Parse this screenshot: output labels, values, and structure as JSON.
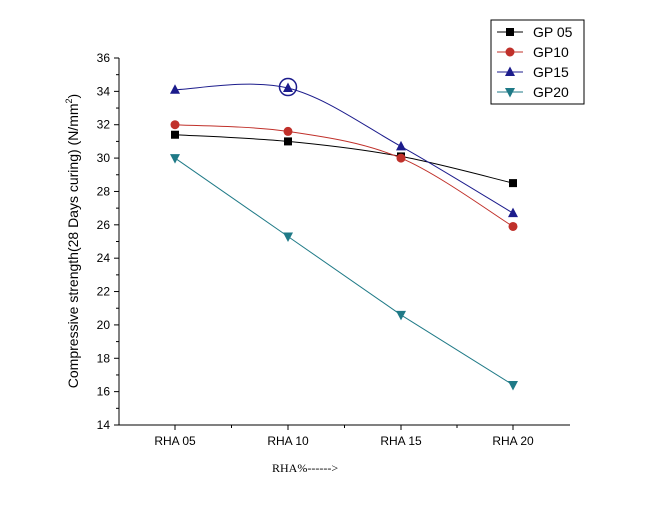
{
  "chart_data": {
    "type": "line",
    "title": "",
    "xlabel": "RHA%",
    "xlabel_arrow": "------>",
    "ylabel_main": "Compressive strength(28 Days curing) (N/mm",
    "ylabel_sup": "2",
    "ylabel_close": ")",
    "categories": [
      "RHA 05",
      "RHA 10",
      "RHA 15",
      "RHA 20"
    ],
    "ylim": [
      14,
      36
    ],
    "yticks": [
      14,
      16,
      18,
      20,
      22,
      24,
      26,
      28,
      30,
      32,
      34,
      36
    ],
    "grid": false,
    "legend_position": "top-right",
    "series": [
      {
        "name": "GP 05",
        "values": [
          31.4,
          31.0,
          30.1,
          28.5
        ],
        "color": "#000000",
        "marker": "square"
      },
      {
        "name": "GP10",
        "values": [
          32.0,
          31.6,
          30.0,
          25.9
        ],
        "color": "#c0302a",
        "marker": "circle"
      },
      {
        "name": "GP15",
        "values": [
          34.1,
          34.2,
          30.7,
          26.7
        ],
        "color": "#1c1c8c",
        "marker": "triangle-up"
      },
      {
        "name": "GP20",
        "values": [
          30.0,
          25.3,
          20.6,
          16.4
        ],
        "color": "#1f7a87",
        "marker": "triangle-down"
      }
    ],
    "annotations": [
      {
        "type": "circle",
        "series": "GP15",
        "category": "RHA 10",
        "color": "#1c1c8c"
      }
    ]
  }
}
